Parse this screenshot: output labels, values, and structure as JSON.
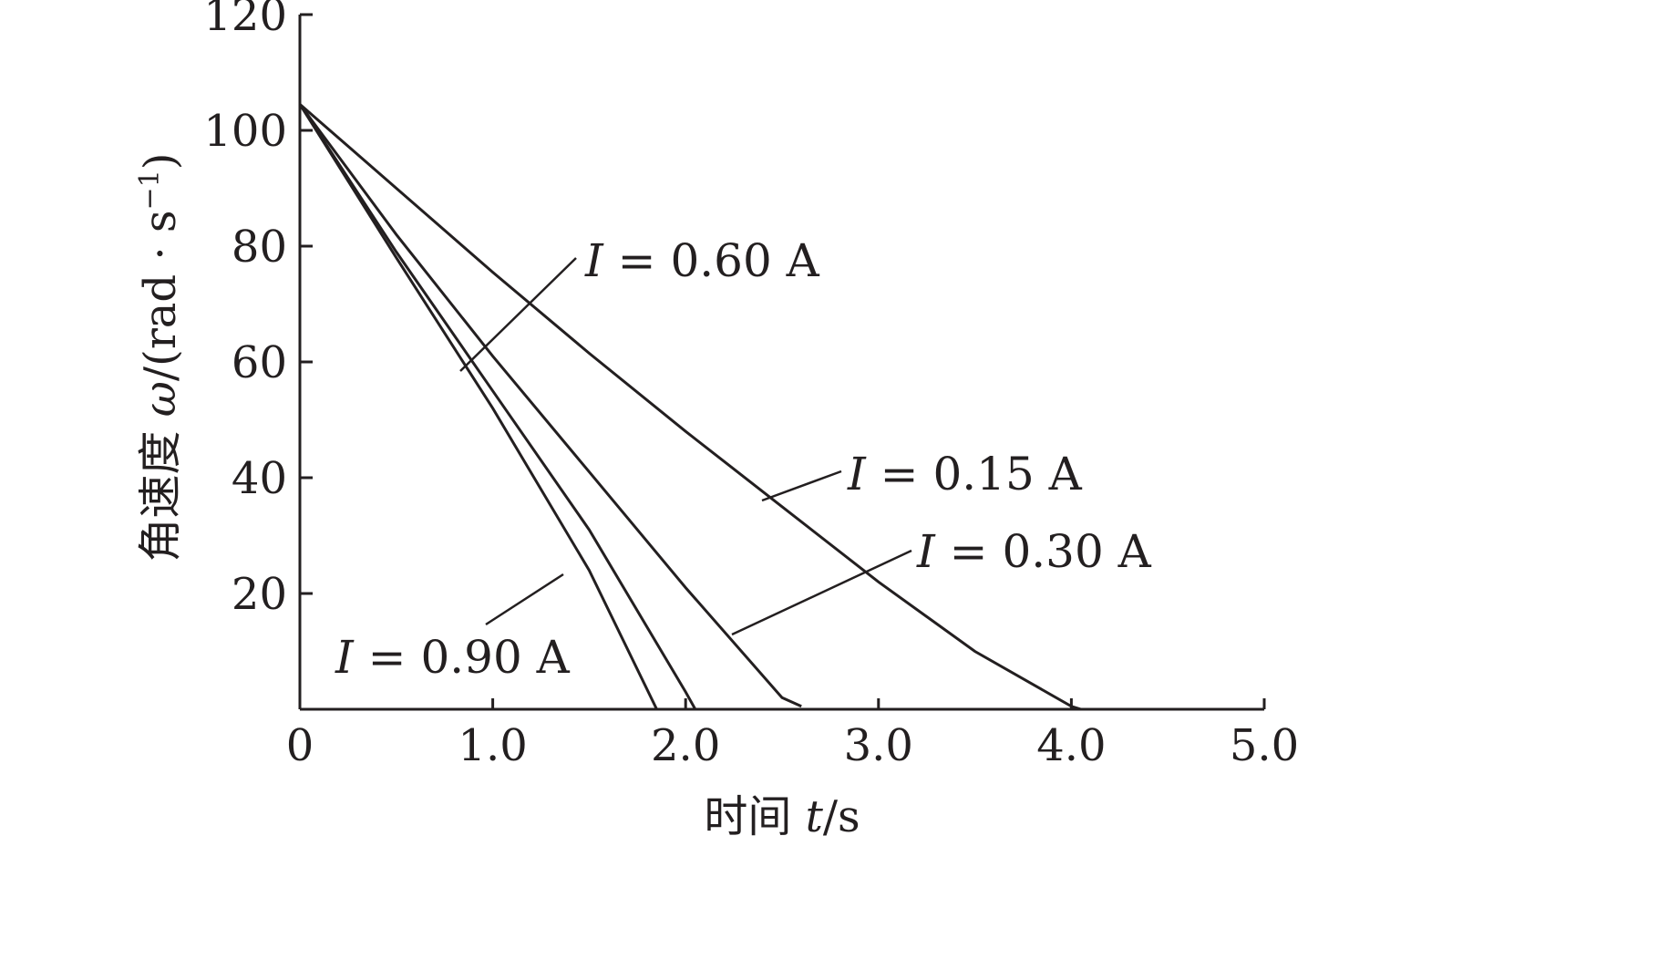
{
  "chart_data": {
    "type": "line",
    "xlabel": "时间 t/s",
    "xlabel_parts": {
      "prefix": "时间 ",
      "var": "t",
      "unit": "/s"
    },
    "ylabel": "角速度 ω/(rad·s⁻¹)",
    "ylabel_parts": {
      "prefix": "角速度 ",
      "var": "ω",
      "unit_main": "/(rad · s",
      "sup": "−1",
      "close": ")"
    },
    "xlim": [
      0,
      5.0
    ],
    "ylim": [
      0,
      120
    ],
    "x_ticks": [
      0,
      1.0,
      2.0,
      3.0,
      4.0,
      5.0
    ],
    "x_tick_labels": [
      "0",
      "1.0",
      "2.0",
      "3.0",
      "4.0",
      "5.0"
    ],
    "y_ticks": [
      20,
      40,
      60,
      80,
      100,
      120
    ],
    "y_tick_labels": [
      "20",
      "40",
      "60",
      "80",
      "100",
      "120"
    ],
    "grid": false,
    "series": [
      {
        "name": "I = 0.15 A",
        "label_var": "I",
        "label_rest": " = 0.15 A",
        "x": [
          0,
          0.5,
          1.0,
          1.5,
          2.0,
          2.5,
          3.0,
          3.5,
          4.0,
          4.05
        ],
        "y": [
          104.5,
          90,
          75.5,
          61.5,
          48,
          35,
          22,
          10,
          0.5,
          0
        ]
      },
      {
        "name": "I = 0.30 A",
        "label_var": "I",
        "label_rest": " = 0.30 A",
        "x": [
          0,
          0.5,
          1.0,
          1.5,
          2.0,
          2.5,
          2.6
        ],
        "y": [
          104.5,
          82,
          61,
          41,
          21,
          2,
          0.5
        ]
      },
      {
        "name": "I = 0.60 A",
        "label_var": "I",
        "label_rest": " = 0.60 A",
        "x": [
          0,
          0.5,
          1.0,
          1.5,
          2.0,
          2.05
        ],
        "y": [
          104.5,
          79,
          55,
          31,
          3,
          0
        ]
      },
      {
        "name": "I = 0.90 A",
        "label_var": "I",
        "label_rest": " = 0.90 A",
        "x": [
          0,
          0.5,
          1.0,
          1.5,
          1.85
        ],
        "y": [
          104.5,
          78,
          52,
          24,
          0
        ]
      }
    ]
  }
}
